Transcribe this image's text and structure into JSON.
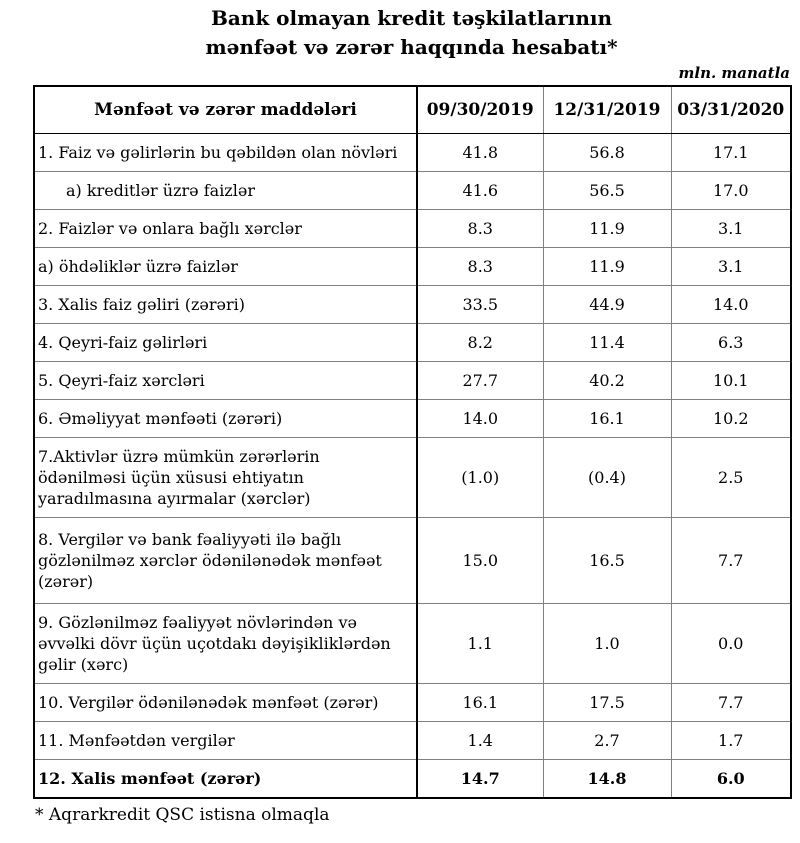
{
  "title": {
    "line1": "Bank olmayan kredit təşkilatlarının",
    "line2": "mənfəət və zərər haqqında hesabatı*"
  },
  "unit_note": "mln. manatla",
  "table": {
    "columns": [
      "Mənfəət və zərər maddələri",
      "09/30/2019",
      "12/31/2019",
      "03/31/2020"
    ],
    "rows": [
      {
        "label": "1. Faiz və gəlirlərin bu qəbildən olan növləri",
        "values": [
          "41.8",
          "56.8",
          "17.1"
        ]
      },
      {
        "label": "a) kreditlər üzrə faizlər",
        "values": [
          "41.6",
          "56.5",
          "17.0"
        ]
      },
      {
        "label": "2. Faizlər və onlara bağlı xərclər",
        "values": [
          "8.3",
          "11.9",
          "3.1"
        ]
      },
      {
        "label": "a) öhdəliklər üzrə faizlər",
        "values": [
          "8.3",
          "11.9",
          "3.1"
        ]
      },
      {
        "label": "3. Xalis faiz gəliri (zərəri)",
        "values": [
          "33.5",
          "44.9",
          "14.0"
        ]
      },
      {
        "label": "4. Qeyri-faiz gəlirləri",
        "values": [
          "8.2",
          "11.4",
          "6.3"
        ]
      },
      {
        "label": "5. Qeyri-faiz xərcləri",
        "values": [
          "27.7",
          "40.2",
          "10.1"
        ]
      },
      {
        "label": "6. Əməliyyat mənfəəti (zərəri)",
        "values": [
          "14.0",
          "16.1",
          "10.2"
        ]
      },
      {
        "label": "7.Aktivlər üzrə mümkün zərərlərin ödənilməsi üçün xüsusi ehtiyatın yaradılmasına ayırmalar (xərclər)",
        "values": [
          "(1.0)",
          "(0.4)",
          "2.5"
        ]
      },
      {
        "label": "8. Vergilər və bank fəaliyyəti ilə bağlı gözlənilməz xərclər ödənilənədək mənfəət (zərər)",
        "values": [
          "15.0",
          "16.5",
          "7.7"
        ]
      },
      {
        "label": "9. Gözlənilməz fəaliyyət növlərindən və əvvəlki dövr üçün uçotdakı dəyişikliklərdən gəlir (xərc)",
        "values": [
          "1.1",
          "1.0",
          "0.0"
        ]
      },
      {
        "label": "10. Vergilər ödənilənədək mənfəət (zərər)",
        "values": [
          "16.1",
          "17.5",
          "7.7"
        ]
      },
      {
        "label": "11. Mənfəətdən vergilər",
        "values": [
          "1.4",
          "2.7",
          "1.7"
        ]
      },
      {
        "label": "12. Xalis mənfəət (zərər)",
        "values": [
          "14.7",
          "14.8",
          "6.0"
        ]
      }
    ]
  },
  "footnote": "* Aqrarkredit QSC istisna olmaqla"
}
